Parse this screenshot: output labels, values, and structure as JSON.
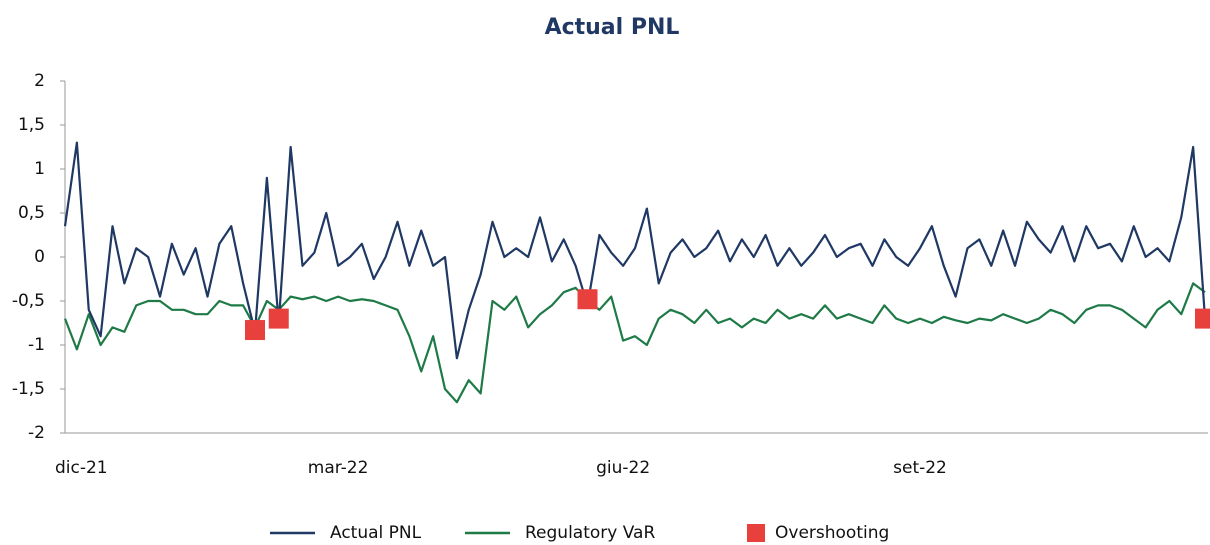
{
  "chart_data": {
    "type": "line",
    "title": "Actual PNL",
    "categories": [
      "dic-21",
      null,
      null,
      null,
      null,
      null,
      null,
      null,
      null,
      null,
      null,
      null,
      null,
      null,
      null,
      null,
      null,
      null,
      null,
      null,
      null,
      null,
      null,
      "mar-22",
      null,
      null,
      null,
      null,
      null,
      null,
      null,
      null,
      null,
      null,
      null,
      null,
      null,
      null,
      null,
      null,
      null,
      null,
      null,
      null,
      null,
      null,
      null,
      "giu-22",
      null,
      null,
      null,
      null,
      null,
      null,
      null,
      null,
      null,
      null,
      null,
      null,
      null,
      null,
      null,
      null,
      null,
      null,
      null,
      null,
      null,
      null,
      null,
      null,
      "set-22",
      null,
      null,
      null,
      null,
      null,
      null,
      null,
      null,
      null,
      null,
      null,
      null,
      null,
      null,
      null,
      null,
      null,
      null,
      null,
      null,
      null,
      null,
      null,
      null
    ],
    "series": [
      {
        "name": "Actual PNL",
        "color": "#1f3864",
        "mode": "line",
        "values": [
          0.35,
          1.3,
          -0.6,
          -0.9,
          0.35,
          -0.3,
          0.1,
          0.0,
          -0.45,
          0.15,
          -0.2,
          0.1,
          -0.45,
          0.15,
          0.35,
          -0.3,
          -0.85,
          0.9,
          -0.75,
          1.25,
          -0.1,
          0.05,
          0.5,
          -0.1,
          0.0,
          0.15,
          -0.25,
          0.0,
          0.4,
          -0.1,
          0.3,
          -0.1,
          0.0,
          -1.15,
          -0.6,
          -0.2,
          0.4,
          0.0,
          0.1,
          0.0,
          0.45,
          -0.05,
          0.2,
          -0.1,
          -0.55,
          0.25,
          0.05,
          -0.1,
          0.1,
          0.55,
          -0.3,
          0.05,
          0.2,
          0.0,
          0.1,
          0.3,
          -0.05,
          0.2,
          0.0,
          0.25,
          -0.1,
          0.1,
          -0.1,
          0.05,
          0.25,
          0.0,
          0.1,
          0.15,
          -0.1,
          0.2,
          0.0,
          -0.1,
          0.1,
          0.35,
          -0.1,
          -0.45,
          0.1,
          0.2,
          -0.1,
          0.3,
          -0.1,
          0.4,
          0.2,
          0.05,
          0.35,
          -0.05,
          0.35,
          0.1,
          0.15,
          -0.05,
          0.35,
          0.0,
          0.1,
          -0.05,
          0.45,
          1.25,
          -0.7
        ]
      },
      {
        "name": "Regulatory VaR",
        "color": "#1e7a46",
        "mode": "line",
        "values": [
          -0.7,
          -1.05,
          -0.65,
          -1.0,
          -0.8,
          -0.85,
          -0.55,
          -0.5,
          -0.5,
          -0.6,
          -0.6,
          -0.65,
          -0.65,
          -0.5,
          -0.55,
          -0.55,
          -0.8,
          -0.5,
          -0.6,
          -0.45,
          -0.48,
          -0.45,
          -0.5,
          -0.45,
          -0.5,
          -0.48,
          -0.5,
          -0.55,
          -0.6,
          -0.9,
          -1.3,
          -0.9,
          -1.5,
          -1.65,
          -1.4,
          -1.55,
          -0.5,
          -0.6,
          -0.45,
          -0.8,
          -0.65,
          -0.55,
          -0.4,
          -0.35,
          -0.5,
          -0.6,
          -0.45,
          -0.95,
          -0.9,
          -1.0,
          -0.7,
          -0.6,
          -0.65,
          -0.75,
          -0.6,
          -0.75,
          -0.7,
          -0.8,
          -0.7,
          -0.75,
          -0.6,
          -0.7,
          -0.65,
          -0.7,
          -0.55,
          -0.7,
          -0.65,
          -0.7,
          -0.75,
          -0.55,
          -0.7,
          -0.75,
          -0.7,
          -0.75,
          -0.68,
          -0.72,
          -0.75,
          -0.7,
          -0.72,
          -0.65,
          -0.7,
          -0.75,
          -0.7,
          -0.6,
          -0.65,
          -0.75,
          -0.6,
          -0.55,
          -0.55,
          -0.6,
          -0.7,
          -0.8,
          -0.6,
          -0.5,
          -0.65,
          -0.3,
          -0.4
        ]
      },
      {
        "name": "Overshooting",
        "color": "#e8413d",
        "mode": "markers",
        "values": [
          null,
          null,
          null,
          null,
          null,
          null,
          null,
          null,
          null,
          null,
          null,
          null,
          null,
          null,
          null,
          null,
          -0.83,
          null,
          -0.7,
          null,
          null,
          null,
          null,
          null,
          null,
          null,
          null,
          null,
          null,
          null,
          null,
          null,
          null,
          null,
          null,
          null,
          null,
          null,
          null,
          null,
          null,
          null,
          null,
          null,
          -0.48,
          null,
          null,
          null,
          null,
          null,
          null,
          null,
          null,
          null,
          null,
          null,
          null,
          null,
          null,
          null,
          null,
          null,
          null,
          null,
          null,
          null,
          null,
          null,
          null,
          null,
          null,
          null,
          null,
          null,
          null,
          null,
          null,
          null,
          null,
          null,
          null,
          null,
          null,
          null,
          null,
          null,
          null,
          null,
          null,
          null,
          null,
          null,
          null,
          null,
          null,
          null,
          -0.7
        ]
      }
    ],
    "ylim": [
      -2,
      2
    ],
    "yticks": [
      -2,
      {
        "value": -1.5,
        "label": "-1,5"
      },
      -1,
      {
        "value": -0.5,
        "label": "-0,5"
      },
      0,
      {
        "value": 0.5,
        "label": "0,5"
      },
      1,
      {
        "value": 1.5,
        "label": "1,5"
      },
      2
    ],
    "grid": false,
    "legend": "bottom"
  }
}
